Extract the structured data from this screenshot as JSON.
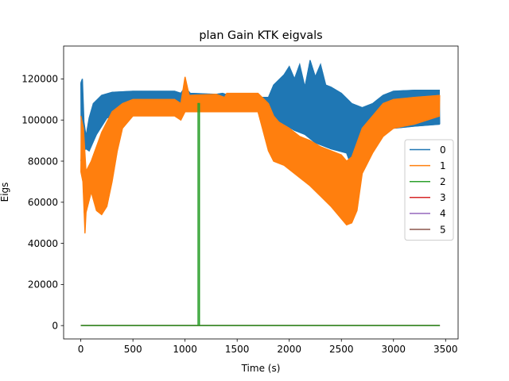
{
  "chart_data": {
    "type": "line",
    "title": "plan Gain KTK eigvals",
    "xlabel": "Time (s)",
    "ylabel": "Eigs",
    "xlim": [
      -165,
      3620
    ],
    "ylim": [
      -6500,
      136000
    ],
    "xticks": [
      0,
      500,
      1000,
      1500,
      2000,
      2500,
      3000,
      3500
    ],
    "yticks": [
      0,
      20000,
      40000,
      60000,
      80000,
      100000,
      120000
    ],
    "xtick_labels": [
      "0",
      "500",
      "1000",
      "1500",
      "2000",
      "2500",
      "3000",
      "3500"
    ],
    "ytick_labels": [
      "0",
      "20000",
      "40000",
      "60000",
      "80000",
      "100000",
      "120000"
    ],
    "grid": false,
    "legend_position": "center-right",
    "series": [
      {
        "name": "0",
        "color": "#1f77b4",
        "upper": [
          [
            0,
            118000
          ],
          [
            15,
            120000
          ],
          [
            30,
            99000
          ],
          [
            50,
            92000
          ],
          [
            80,
            101000
          ],
          [
            120,
            108000
          ],
          [
            200,
            112000
          ],
          [
            300,
            113500
          ],
          [
            500,
            114000
          ],
          [
            900,
            114000
          ],
          [
            960,
            113000
          ],
          [
            1000,
            116000
          ],
          [
            1050,
            113000
          ],
          [
            1300,
            112500
          ],
          [
            1360,
            113000
          ],
          [
            1420,
            112000
          ],
          [
            1500,
            111500
          ],
          [
            1700,
            111000
          ],
          [
            1800,
            111000
          ],
          [
            1850,
            117000
          ],
          [
            1950,
            122000
          ],
          [
            2000,
            126000
          ],
          [
            2050,
            120000
          ],
          [
            2100,
            127000
          ],
          [
            2150,
            116000
          ],
          [
            2200,
            129000
          ],
          [
            2250,
            121000
          ],
          [
            2300,
            127000
          ],
          [
            2350,
            117000
          ],
          [
            2400,
            116000
          ],
          [
            2500,
            113000
          ],
          [
            2600,
            108000
          ],
          [
            2700,
            106000
          ],
          [
            2800,
            108000
          ],
          [
            2900,
            112000
          ],
          [
            3000,
            114000
          ],
          [
            3200,
            114500
          ],
          [
            3445,
            114500
          ]
        ],
        "lower": [
          [
            0,
            80000
          ],
          [
            20,
            85000
          ],
          [
            50,
            86000
          ],
          [
            80,
            85000
          ],
          [
            150,
            93000
          ],
          [
            250,
            101000
          ],
          [
            400,
            104000
          ],
          [
            500,
            105000
          ],
          [
            900,
            105000
          ],
          [
            960,
            105000
          ],
          [
            1000,
            106000
          ],
          [
            1300,
            106000
          ],
          [
            1500,
            105500
          ],
          [
            1800,
            105500
          ],
          [
            1850,
            101000
          ],
          [
            1950,
            98000
          ],
          [
            2050,
            95000
          ],
          [
            2150,
            93000
          ],
          [
            2250,
            89000
          ],
          [
            2400,
            86000
          ],
          [
            2550,
            84000
          ],
          [
            2650,
            70000
          ],
          [
            2700,
            77000
          ],
          [
            2800,
            88000
          ],
          [
            2900,
            94000
          ],
          [
            3000,
            96000
          ],
          [
            3200,
            97000
          ],
          [
            3445,
            98000
          ]
        ]
      },
      {
        "name": "1",
        "color": "#ff7f0e",
        "upper": [
          [
            0,
            102000
          ],
          [
            25,
            96000
          ],
          [
            50,
            75000
          ],
          [
            100,
            80000
          ],
          [
            200,
            94000
          ],
          [
            300,
            104000
          ],
          [
            400,
            108000
          ],
          [
            500,
            110000
          ],
          [
            900,
            110000
          ],
          [
            960,
            108000
          ],
          [
            1000,
            121000
          ],
          [
            1040,
            112000
          ],
          [
            1300,
            112500
          ],
          [
            1380,
            111000
          ],
          [
            1400,
            113000
          ],
          [
            1500,
            113000
          ],
          [
            1700,
            113000
          ],
          [
            1800,
            108000
          ],
          [
            1850,
            102000
          ],
          [
            1900,
            99000
          ],
          [
            2000,
            96000
          ],
          [
            2100,
            92000
          ],
          [
            2200,
            90000
          ],
          [
            2300,
            87000
          ],
          [
            2400,
            85000
          ],
          [
            2500,
            83000
          ],
          [
            2550,
            80000
          ],
          [
            2600,
            82000
          ],
          [
            2700,
            96000
          ],
          [
            2800,
            102000
          ],
          [
            2900,
            108000
          ],
          [
            3000,
            110000
          ],
          [
            3200,
            111000
          ],
          [
            3445,
            112000
          ]
        ],
        "lower": [
          [
            0,
            75000
          ],
          [
            20,
            70000
          ],
          [
            40,
            45000
          ],
          [
            50,
            55000
          ],
          [
            100,
            65000
          ],
          [
            150,
            56000
          ],
          [
            200,
            54000
          ],
          [
            250,
            58000
          ],
          [
            300,
            70000
          ],
          [
            350,
            85000
          ],
          [
            400,
            96000
          ],
          [
            500,
            102000
          ],
          [
            900,
            102000
          ],
          [
            960,
            100000
          ],
          [
            1000,
            104000
          ],
          [
            1300,
            104000
          ],
          [
            1500,
            104000
          ],
          [
            1700,
            104000
          ],
          [
            1800,
            85000
          ],
          [
            1850,
            80000
          ],
          [
            1950,
            78000
          ],
          [
            2100,
            72000
          ],
          [
            2200,
            68000
          ],
          [
            2300,
            63000
          ],
          [
            2400,
            58000
          ],
          [
            2500,
            52000
          ],
          [
            2550,
            49000
          ],
          [
            2600,
            50000
          ],
          [
            2650,
            56000
          ],
          [
            2700,
            74000
          ],
          [
            2800,
            84000
          ],
          [
            2900,
            92000
          ],
          [
            3000,
            96000
          ],
          [
            3200,
            98000
          ],
          [
            3445,
            102000
          ]
        ]
      },
      {
        "name": "2",
        "color": "#2ca02c",
        "line": [
          [
            0,
            0
          ],
          [
            1125,
            0
          ],
          [
            1125,
            108000
          ],
          [
            1138,
            108000
          ],
          [
            1138,
            0
          ],
          [
            3445,
            0
          ]
        ]
      },
      {
        "name": "3",
        "color": "#d62728",
        "line": [
          [
            0,
            0
          ],
          [
            3445,
            0
          ]
        ]
      },
      {
        "name": "4",
        "color": "#9467bd",
        "line": [
          [
            0,
            0
          ],
          [
            3445,
            0
          ]
        ]
      },
      {
        "name": "5",
        "color": "#8c564b",
        "line": [
          [
            0,
            0
          ],
          [
            3445,
            0
          ]
        ]
      }
    ]
  }
}
